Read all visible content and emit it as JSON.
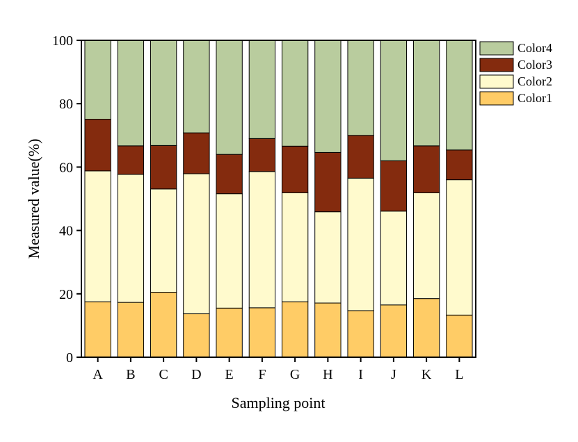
{
  "chart_data": {
    "type": "bar",
    "stacked": true,
    "title": "",
    "xlabel": "Sampling point",
    "ylabel": "Measured value(%)",
    "ylim": [
      0,
      100
    ],
    "yticks": [
      0,
      20,
      40,
      60,
      80,
      100
    ],
    "grid": false,
    "legend_position": "top-right outside",
    "categories": [
      "A",
      "B",
      "C",
      "D",
      "E",
      "F",
      "G",
      "H",
      "I",
      "J",
      "K",
      "L"
    ],
    "series": [
      {
        "name": "Color1",
        "color": "#FFCC66",
        "values": [
          17.5,
          17.3,
          20.5,
          13.7,
          15.5,
          15.6,
          17.5,
          17.1,
          14.7,
          16.5,
          18.5,
          13.3
        ]
      },
      {
        "name": "Color2",
        "color": "#FFFACD",
        "values": [
          41.3,
          40.4,
          32.6,
          44.2,
          36.1,
          43.0,
          34.4,
          28.8,
          41.8,
          29.6,
          33.4,
          42.7
        ]
      },
      {
        "name": "Color3",
        "color": "#842B0E",
        "values": [
          16.3,
          9.0,
          13.7,
          12.9,
          12.4,
          10.4,
          14.7,
          18.7,
          13.5,
          15.9,
          14.8,
          9.4
        ]
      },
      {
        "name": "Color4",
        "color": "#B9CC9E",
        "values": [
          24.9,
          33.3,
          33.2,
          29.2,
          36.0,
          31.0,
          33.4,
          35.4,
          30.0,
          38.0,
          33.3,
          34.6
        ]
      }
    ]
  }
}
